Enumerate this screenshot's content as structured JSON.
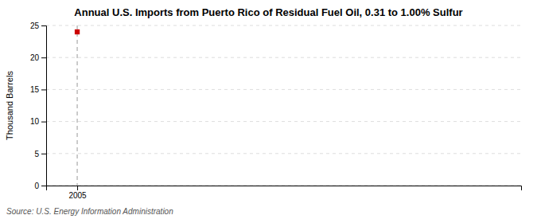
{
  "chart_data": {
    "type": "scatter",
    "title": "Annual U.S. Imports from Puerto Rico of Residual Fuel Oil, 0.31 to 1.00% Sulfur",
    "ylabel": "Thousand Barrels",
    "source": "Source: U.S. Energy Information Administration",
    "x": [
      2005
    ],
    "values": [
      24
    ],
    "color": "#cc0000",
    "marker": "square",
    "xlim": [
      2004.3,
      2015.0
    ],
    "xticks": [
      2005
    ],
    "ylim": [
      0,
      25
    ],
    "yticks": [
      0,
      5,
      10,
      15,
      20,
      25
    ],
    "grid": true,
    "annotations": [
      {
        "type": "vline",
        "x": 2005
      }
    ]
  }
}
